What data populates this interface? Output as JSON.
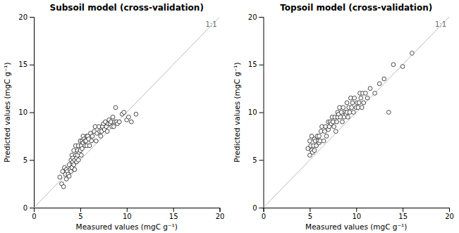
{
  "chart_data": [
    {
      "type": "scatter",
      "title": "Subsoil model (cross-validation)",
      "xlabel": "Measured values (mgC  g⁻¹)",
      "ylabel": "Predicted values (mgC  g⁻¹)",
      "xlim": [
        0,
        20
      ],
      "ylim": [
        0,
        20
      ],
      "xticks": [
        0,
        5,
        10,
        15,
        20
      ],
      "yticks": [
        0,
        5,
        10,
        15,
        20
      ],
      "series": [
        {
          "type": "line",
          "label": "1:1",
          "color": "#bbbbbb",
          "x": [
            0,
            20
          ],
          "values": [
            0,
            20
          ]
        },
        {
          "type": "scatter",
          "color": "black",
          "marker": "circle",
          "x": [
            2.8,
            3.0,
            3.1,
            3.2,
            3.3,
            3.4,
            3.5,
            3.5,
            3.6,
            3.7,
            3.8,
            3.8,
            3.9,
            4.0,
            4.0,
            4.1,
            4.1,
            4.2,
            4.2,
            4.3,
            4.3,
            4.4,
            4.4,
            4.5,
            4.5,
            4.6,
            4.6,
            4.7,
            4.7,
            4.8,
            4.8,
            4.9,
            5.0,
            5.0,
            5.1,
            5.1,
            5.2,
            5.2,
            5.3,
            5.3,
            5.4,
            5.5,
            5.5,
            5.6,
            5.7,
            5.7,
            5.8,
            5.9,
            6.0,
            6.1,
            6.2,
            6.3,
            6.5,
            6.6,
            6.7,
            6.8,
            7.0,
            7.1,
            7.2,
            7.3,
            7.4,
            7.5,
            7.6,
            7.7,
            7.8,
            7.9,
            8.0,
            8.1,
            8.2,
            8.3,
            8.4,
            8.5,
            8.6,
            8.7,
            8.8,
            8.9,
            9.0,
            9.2,
            9.5,
            9.7,
            10.0,
            10.2,
            10.5,
            11.0
          ],
          "values": [
            3.2,
            2.5,
            3.8,
            2.2,
            4.2,
            3.5,
            3.0,
            4.0,
            3.8,
            3.5,
            4.5,
            3.3,
            4.0,
            3.8,
            5.0,
            4.2,
            5.5,
            4.8,
            5.2,
            4.5,
            6.0,
            5.0,
            4.0,
            5.5,
            6.5,
            5.2,
            4.8,
            5.5,
            6.0,
            5.0,
            6.5,
            5.8,
            6.0,
            7.0,
            6.5,
            5.5,
            7.0,
            6.2,
            7.5,
            6.8,
            7.2,
            7.0,
            6.5,
            7.0,
            7.5,
            6.5,
            7.5,
            7.2,
            6.5,
            7.8,
            7.0,
            7.5,
            8.0,
            8.5,
            7.0,
            7.8,
            8.5,
            8.0,
            7.5,
            8.0,
            8.5,
            8.8,
            8.2,
            9.0,
            8.5,
            8.0,
            8.8,
            9.2,
            8.8,
            9.0,
            8.5,
            9.5,
            8.5,
            9.0,
            10.5,
            9.0,
            8.8,
            9.0,
            9.8,
            10.0,
            9.2,
            9.5,
            9.0,
            9.8
          ]
        }
      ]
    },
    {
      "type": "scatter",
      "title": "Topsoil model (cross-validation)",
      "xlabel": "Measured values (mgC  g⁻¹)",
      "ylabel": "Predicted values (mgC  g⁻¹)",
      "xlim": [
        0,
        20
      ],
      "ylim": [
        0,
        20
      ],
      "xticks": [
        0,
        5,
        10,
        15,
        20
      ],
      "yticks": [
        0,
        5,
        10,
        15,
        20
      ],
      "series": [
        {
          "type": "line",
          "label": "1:1",
          "color": "#bbbbbb",
          "x": [
            0,
            20
          ],
          "values": [
            0,
            20
          ]
        },
        {
          "type": "scatter",
          "color": "black",
          "marker": "circle",
          "x": [
            4.8,
            5.0,
            5.0,
            5.1,
            5.2,
            5.2,
            5.3,
            5.4,
            5.5,
            5.5,
            5.6,
            5.7,
            5.8,
            5.9,
            6.0,
            6.0,
            6.1,
            6.2,
            6.3,
            6.5,
            6.6,
            6.7,
            6.8,
            7.0,
            7.0,
            7.1,
            7.2,
            7.3,
            7.4,
            7.5,
            7.6,
            7.7,
            7.8,
            7.9,
            8.0,
            8.0,
            8.1,
            8.2,
            8.3,
            8.4,
            8.5,
            8.6,
            8.7,
            8.8,
            8.9,
            9.0,
            9.0,
            9.1,
            9.2,
            9.3,
            9.4,
            9.5,
            9.6,
            9.7,
            9.8,
            10.0,
            10.1,
            10.2,
            10.3,
            10.4,
            10.5,
            10.6,
            10.7,
            10.8,
            11.0,
            11.2,
            11.5,
            12.0,
            12.5,
            13.0,
            13.5,
            14.0,
            15.0,
            16.0
          ],
          "values": [
            6.2,
            5.5,
            7.0,
            6.5,
            6.0,
            7.5,
            5.8,
            6.5,
            6.0,
            7.2,
            7.0,
            6.5,
            7.5,
            7.0,
            7.5,
            6.8,
            7.0,
            8.0,
            8.5,
            7.0,
            8.0,
            8.5,
            7.5,
            9.0,
            8.2,
            8.5,
            9.0,
            8.8,
            9.5,
            9.0,
            8.5,
            9.5,
            8.0,
            9.0,
            9.5,
            10.0,
            9.8,
            10.5,
            9.5,
            10.0,
            9.0,
            10.5,
            9.5,
            10.0,
            9.8,
            10.0,
            11.0,
            9.5,
            10.5,
            10.0,
            11.5,
            10.5,
            11.0,
            10.0,
            11.5,
            10.5,
            11.0,
            10.5,
            11.0,
            12.0,
            11.5,
            10.5,
            12.0,
            11.0,
            12.0,
            11.5,
            12.5,
            12.0,
            13.0,
            13.5,
            10.0,
            15.0,
            14.8,
            16.2
          ]
        }
      ]
    }
  ]
}
